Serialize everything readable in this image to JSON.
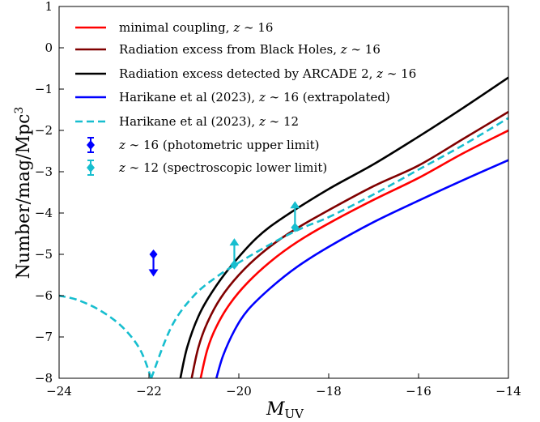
{
  "chart_data": {
    "type": "line",
    "xlabel": "M_UV",
    "ylabel": "Number/mag/Mpc³",
    "xlim": [
      -24,
      -14
    ],
    "ylim": [
      -8,
      1
    ],
    "x_ticks": [
      -24,
      -22,
      -20,
      -18,
      -16,
      -14
    ],
    "x_tick_labels": [
      "−24",
      "−22",
      "−20",
      "−18",
      "−16",
      "−14"
    ],
    "y_ticks": [
      -8,
      -7,
      -6,
      -5,
      -4,
      -3,
      -2,
      -1,
      0,
      1
    ],
    "y_tick_labels": [
      "−8",
      "−7",
      "−6",
      "−5",
      "−4",
      "−3",
      "−2",
      "−1",
      "0",
      "1"
    ],
    "grid": false,
    "legend_position": "top-left",
    "series": [
      {
        "name": "minimal coupling, z ∼ 16",
        "color": "#ff0000",
        "style": "solid",
        "x": [
          -20.85,
          -20.7,
          -20.5,
          -20.2,
          -19.8,
          -19.3,
          -18.7,
          -18.0,
          -17.0,
          -16.0,
          -15.0,
          -14.0
        ],
        "y": [
          -8.0,
          -7.3,
          -6.75,
          -6.2,
          -5.68,
          -5.18,
          -4.7,
          -4.25,
          -3.68,
          -3.15,
          -2.55,
          -2.0
        ]
      },
      {
        "name": "Radiation excess from Black Holes, z ∼ 16",
        "color": "#800000",
        "style": "solid",
        "x": [
          -21.05,
          -20.9,
          -20.7,
          -20.4,
          -20.0,
          -19.5,
          -18.9,
          -18.2,
          -17.0,
          -16.0,
          -15.0,
          -14.0
        ],
        "y": [
          -8.0,
          -7.25,
          -6.65,
          -6.05,
          -5.5,
          -4.98,
          -4.5,
          -4.05,
          -3.35,
          -2.85,
          -2.2,
          -1.55
        ]
      },
      {
        "name": "Radiation excess detected by ARCADE 2, z ∼ 16",
        "color": "#000000",
        "style": "solid",
        "x": [
          -21.3,
          -21.15,
          -20.9,
          -20.6,
          -20.2,
          -19.6,
          -19.0,
          -18.0,
          -17.0,
          -16.0,
          -15.0,
          -14.0
        ],
        "y": [
          -8.0,
          -7.25,
          -6.5,
          -5.92,
          -5.32,
          -4.6,
          -4.1,
          -3.42,
          -2.82,
          -2.15,
          -1.45,
          -0.72
        ]
      },
      {
        "name": "Harikane et al (2023), z ∼ 16 (extrapolated)",
        "color": "#0000ff",
        "style": "solid",
        "x": [
          -20.5,
          -20.35,
          -20.1,
          -19.8,
          -19.3,
          -18.7,
          -18.0,
          -17.0,
          -16.0,
          -15.0,
          -14.0
        ],
        "y": [
          -8.0,
          -7.45,
          -6.85,
          -6.35,
          -5.82,
          -5.3,
          -4.82,
          -4.22,
          -3.7,
          -3.2,
          -2.72
        ]
      },
      {
        "name": "Harikane et al (2023), z ∼ 12",
        "color": "#17becf",
        "style": "dashed",
        "x": [
          -21.95,
          -22.2,
          -22.6,
          -23.1,
          -23.6,
          -24.0
        ],
        "y": [
          -8.0,
          -7.3,
          -6.75,
          -6.35,
          -6.1,
          -6.0
        ],
        "x_upper": [
          -21.95,
          -21.5,
          -21.0,
          -20.5,
          -20.0,
          -19.5,
          -19.0,
          -18.5,
          -18.0,
          -17.0,
          -16.0,
          -15.0,
          -14.0
        ],
        "y_upper": [
          -8.0,
          -6.75,
          -6.0,
          -5.55,
          -5.2,
          -4.88,
          -4.58,
          -4.32,
          -4.1,
          -3.55,
          -2.95,
          -2.35,
          -1.7
        ]
      }
    ],
    "points": [
      {
        "name": "z ∼ 16 (photometric upper limit)",
        "color": "#0000ff",
        "marker": "diamond",
        "x": -21.9,
        "y": -5.0,
        "limit": "upper",
        "arrow_to": -5.5
      },
      {
        "name": "z ∼ 12 (spectroscopic lower limit)",
        "color": "#17becf",
        "marker": "diamond",
        "data": [
          {
            "x": -20.1,
            "y": -5.25,
            "arrow_to": -4.65
          },
          {
            "x": -18.75,
            "y": -4.35,
            "arrow_to": -3.75
          }
        ],
        "limit": "lower"
      }
    ]
  }
}
